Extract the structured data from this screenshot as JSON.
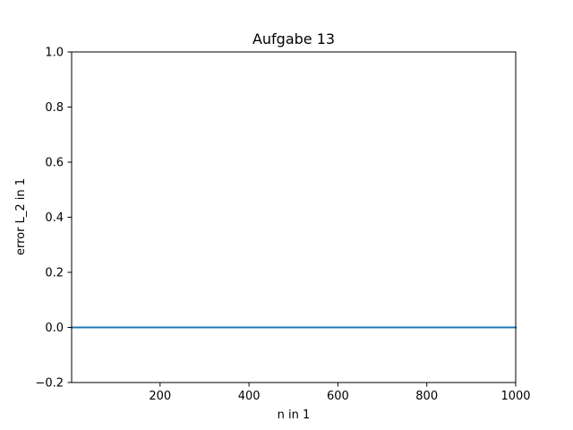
{
  "chart_data": {
    "type": "line",
    "title": "Aufgabe 13",
    "xlabel": "n in 1",
    "ylabel": "error L_2 in 1",
    "xlim": [
      1,
      1000
    ],
    "ylim": [
      -0.2,
      1.0
    ],
    "x_ticks": [
      200,
      400,
      600,
      800,
      1000
    ],
    "x_tick_labels": [
      "200",
      "400",
      "600",
      "800",
      "1000"
    ],
    "y_ticks": [
      -0.2,
      0.0,
      0.2,
      0.4,
      0.6,
      0.8,
      1.0
    ],
    "y_tick_labels": [
      "−0.2",
      "0.0",
      "0.2",
      "0.4",
      "0.6",
      "0.8",
      "1.0"
    ],
    "grid": false,
    "series": [
      {
        "color": "#1f77b4",
        "x": [
          1,
          1000
        ],
        "y": [
          0.0,
          0.0
        ]
      }
    ]
  }
}
